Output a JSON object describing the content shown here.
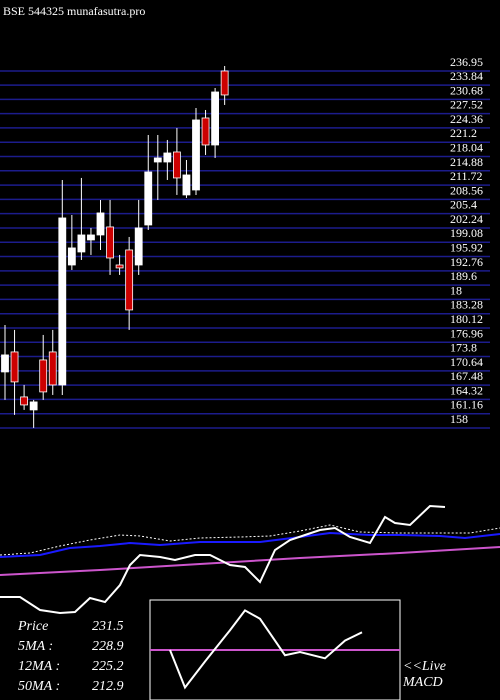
{
  "chart_data": [
    {
      "type": "candlestick",
      "title": "BSE 544325 munafasutra.pro",
      "ylim": [
        158,
        236.95
      ],
      "yticks": [
        236.95,
        233.84,
        230.68,
        227.52,
        224.36,
        221.2,
        218.04,
        214.88,
        211.72,
        208.56,
        205.4,
        202.24,
        199.08,
        195.92,
        192.76,
        189.6,
        {
          "value": 186.44,
          "label": "18"
        },
        183.28,
        180.12,
        176.96,
        173.8,
        170.64,
        167.48,
        164.32,
        161.16,
        158
      ],
      "grid_color": "#1c1c8c",
      "up_color": "#ffffff",
      "down_color": "#cc0000",
      "candles": [
        {
          "open": 170.4,
          "high": 180.79,
          "low": 164.21,
          "close": 174.16
        },
        {
          "open": 174.82,
          "high": 179.69,
          "low": 160.9,
          "close": 168.19
        },
        {
          "open": 164.87,
          "high": 167.52,
          "low": 162.0,
          "close": 163.1
        },
        {
          "open": 162.0,
          "high": 164.21,
          "low": 158.02,
          "close": 163.77
        },
        {
          "open": 173.05,
          "high": 178.58,
          "low": 164.21,
          "close": 165.98
        },
        {
          "open": 174.82,
          "high": 179.69,
          "low": 165.31,
          "close": 167.52
        },
        {
          "open": 167.52,
          "high": 212.85,
          "low": 165.31,
          "close": 204.45
        },
        {
          "open": 194.05,
          "high": 205.11,
          "low": 192.95,
          "close": 197.82
        },
        {
          "open": 196.93,
          "high": 213.3,
          "low": 195.16,
          "close": 200.69
        },
        {
          "open": 199.59,
          "high": 202.24,
          "low": 196.27,
          "close": 200.69
        },
        {
          "open": 200.69,
          "high": 208.43,
          "low": 197.37,
          "close": 205.56
        },
        {
          "open": 202.46,
          "high": 208.43,
          "low": 191.85,
          "close": 195.6
        },
        {
          "open": 194.05,
          "high": 196.27,
          "low": 191.85,
          "close": 193.4
        },
        {
          "open": 197.37,
          "high": 200.25,
          "low": 179.69,
          "close": 184.11
        },
        {
          "open": 194.05,
          "high": 208.43,
          "low": 191.85,
          "close": 202.24
        },
        {
          "open": 202.9,
          "high": 222.8,
          "low": 201.8,
          "close": 214.62
        },
        {
          "open": 216.83,
          "high": 222.8,
          "low": 208.43,
          "close": 217.72
        },
        {
          "open": 216.83,
          "high": 221.7,
          "low": 212.85,
          "close": 218.82
        },
        {
          "open": 219.04,
          "high": 224.35,
          "low": 209.54,
          "close": 213.3
        },
        {
          "open": 209.54,
          "high": 217.27,
          "low": 208.87,
          "close": 213.96
        },
        {
          "open": 210.64,
          "high": 228.77,
          "low": 209.54,
          "close": 226.12
        },
        {
          "open": 226.56,
          "high": 228.33,
          "low": 218.38,
          "close": 220.59
        },
        {
          "open": 220.59,
          "high": 233.19,
          "low": 217.72,
          "close": 232.31
        },
        {
          "open": 236.95,
          "high": 238.06,
          "low": 229.44,
          "close": 231.65
        }
      ]
    },
    {
      "type": "line",
      "xlim": [
        0,
        500
      ],
      "ylim": [
        0,
        120
      ],
      "series": [
        {
          "color": "#ffffff",
          "dash": true,
          "x": [
            0,
            30,
            60,
            90,
            120,
            140,
            170,
            200,
            240,
            270,
            300,
            330,
            360,
            400,
            440,
            470,
            500
          ],
          "values": [
            65,
            67,
            74,
            80,
            85,
            84,
            79,
            82,
            83,
            84,
            89,
            95,
            88,
            87,
            87,
            87,
            92
          ]
        },
        {
          "color": "#1a1aff",
          "x": [
            0,
            40,
            70,
            100,
            130,
            160,
            200,
            260,
            300,
            330,
            370,
            400,
            440,
            465,
            500
          ],
          "values": [
            63,
            65,
            72,
            74,
            77,
            75,
            78,
            78,
            83,
            87,
            85,
            85,
            84,
            82,
            86
          ]
        },
        {
          "color": "#cc55cc",
          "x": [
            0,
            100,
            200,
            300,
            400,
            500
          ],
          "values": [
            45,
            50,
            56,
            62,
            67,
            73
          ]
        },
        {
          "color": "#ffffff",
          "x": [
            0,
            20,
            40,
            60,
            75,
            90,
            105,
            120,
            130,
            140,
            160,
            175,
            195,
            210,
            230,
            245,
            260,
            275,
            290,
            305,
            320,
            335,
            350,
            370,
            385,
            395,
            410,
            430,
            445
          ],
          "values": [
            23,
            23,
            10,
            7,
            8,
            22,
            18,
            35,
            55,
            65,
            63,
            60,
            65,
            65,
            55,
            53,
            38,
            70,
            80,
            85,
            90,
            92,
            83,
            77,
            103,
            97,
            95,
            114,
            113
          ]
        }
      ],
      "legend": [
        {
          "label": "Price",
          "value": "231.5"
        },
        {
          "label": "5MA :",
          "value": "228.9"
        },
        {
          "label": "12MA :",
          "value": "225.2"
        },
        {
          "label": "50MA :",
          "value": "212.9"
        }
      ]
    },
    {
      "type": "line",
      "title": "MACD",
      "annotation": "<<Live",
      "xlim": [
        150,
        400
      ],
      "ylim": [
        -48,
        48
      ],
      "series": [
        {
          "color": "#cc55cc",
          "x": [
            150,
            400
          ],
          "values": [
            0,
            0
          ]
        },
        {
          "color": "#ffffff",
          "x": [
            170,
            185,
            205,
            230,
            245,
            260,
            285,
            300,
            325,
            345,
            362
          ],
          "values": [
            0,
            -36,
            -11,
            19,
            38,
            30,
            -5,
            -2,
            -8,
            9,
            17
          ]
        }
      ]
    }
  ]
}
